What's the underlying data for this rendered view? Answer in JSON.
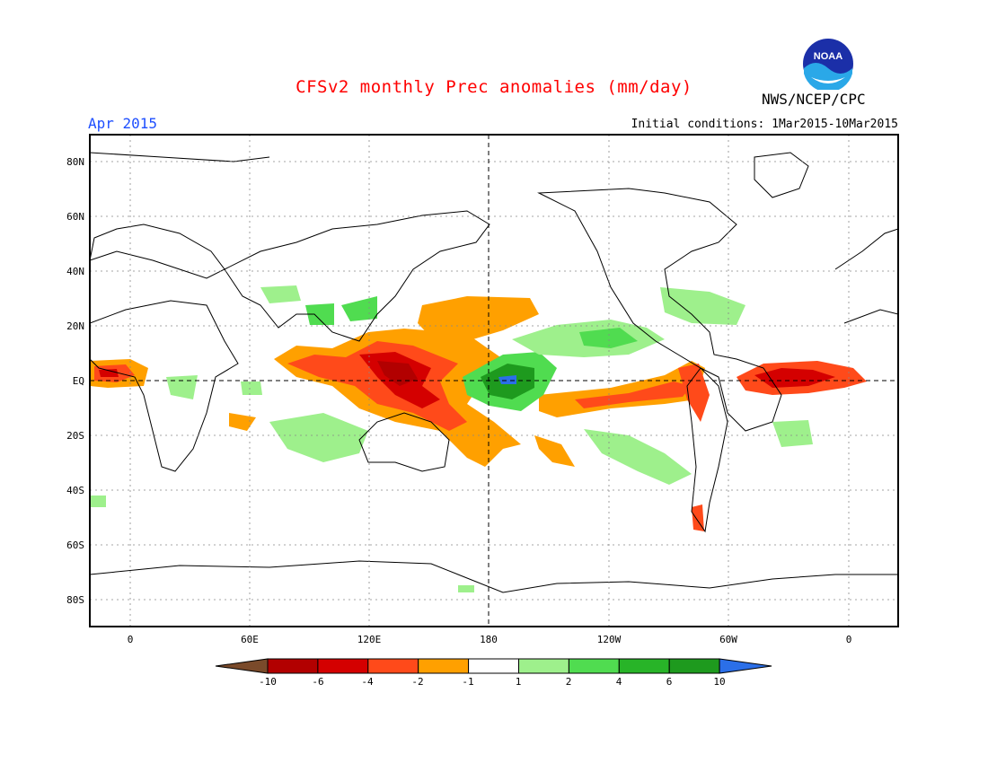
{
  "title": "CFSv2 monthly Prec anomalies (mm/day)",
  "month": "Apr 2015",
  "initial_conditions": "Initial conditions: 1Mar2015-10Mar2015",
  "agency": "NWS/NCEP/CPC",
  "logo_text": "NOAA",
  "lat_labels": [
    "80N",
    "60N",
    "40N",
    "20N",
    "EQ",
    "20S",
    "40S",
    "60S",
    "80S"
  ],
  "lon_labels": [
    "0",
    "60E",
    "120E",
    "180",
    "120W",
    "60W",
    "0"
  ],
  "colorbar": {
    "labels": [
      "-10",
      "-6",
      "-4",
      "-2",
      "-1",
      "1",
      "2",
      "4",
      "6",
      "10"
    ],
    "colors": [
      "#7a4a2a",
      "#b20000",
      "#d40000",
      "#ff4a1a",
      "#ffa000",
      "#ffffff",
      "#9ef08c",
      "#50dc50",
      "#28b428",
      "#1e9a1e",
      "#2b6fe8"
    ]
  }
}
